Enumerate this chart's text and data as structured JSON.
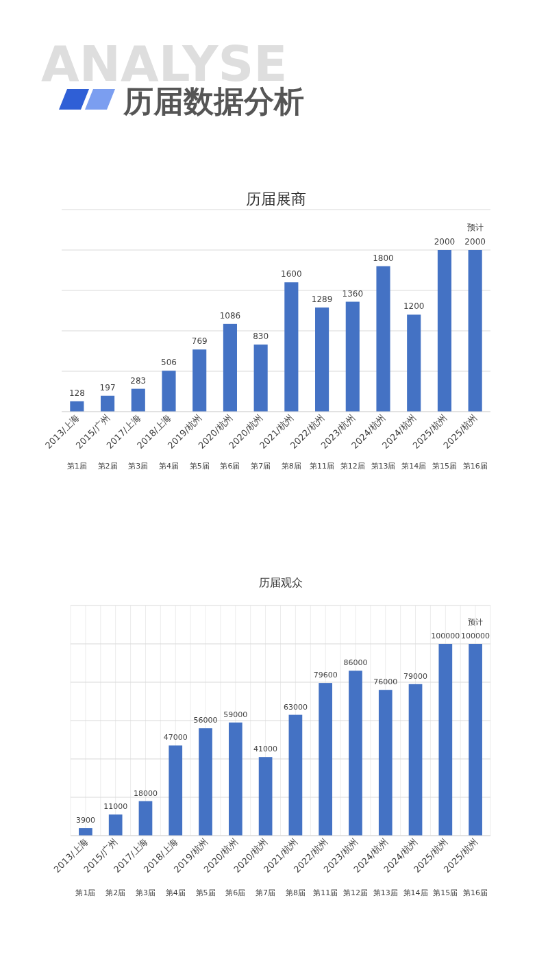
{
  "chart_data": [
    {
      "type": "bar",
      "title": "历届展商",
      "categories": [
        "2013/上海",
        "2015/广州",
        "2017/上海",
        "2018/上海",
        "2019/杭州",
        "2020/杭州",
        "2020/杭州",
        "2021/杭州",
        "2022/杭州",
        "2023/杭州",
        "2024/杭州",
        "2024/杭州",
        "2025/杭州",
        "2025/杭州"
      ],
      "values": [
        128,
        197,
        283,
        506,
        769,
        1086,
        830,
        1600,
        1289,
        1360,
        1800,
        1200,
        2000,
        2000
      ],
      "color": "#4472c4",
      "ylim": [
        0,
        2500
      ],
      "yticks": [
        {
          "value": 0,
          "label": null
        },
        {
          "value": 500,
          "label": null
        },
        {
          "value": 1000,
          "label": null
        },
        {
          "value": 1500,
          "label": null
        },
        {
          "value": 2000,
          "label": null
        },
        {
          "value": 2500,
          "label": null
        }
      ],
      "grid": "y",
      "tick_labels": "x",
      "data_labels": true,
      "annotations": [
        "历届数据分析",
        "ANALYSE",
        "预计",
        "第1届",
        "第2届",
        "第3届",
        "第4届",
        "第5届",
        "第6届",
        "第7届",
        "第8届",
        "第11届",
        "第12届",
        "第13届",
        "第14届",
        "第15届",
        "第16届"
      ]
    },
    {
      "type": "bar",
      "title": "历届观众",
      "categories": [
        "2013/上海",
        "2015/广州",
        "2017/上海",
        "2018/上海",
        "2019/杭州",
        "2020/杭州",
        "2020/杭州",
        "2021/杭州",
        "2022/杭州",
        "2023/杭州",
        "2024/杭州",
        "2024/杭州",
        "2025/杭州",
        "2025/杭州"
      ],
      "values": [
        3900,
        11000,
        18000,
        47000,
        56000,
        59000,
        41000,
        63000,
        79600,
        86000,
        76000,
        79000,
        100000,
        100000
      ],
      "color": "#4472c4",
      "ylim": [
        0,
        120000
      ],
      "yticks": [
        {
          "value": 0,
          "label": null
        },
        {
          "value": 20000,
          "label": null
        },
        {
          "value": 40000,
          "label": null
        },
        {
          "value": 60000,
          "label": null
        },
        {
          "value": 80000,
          "label": null
        },
        {
          "value": 100000,
          "label": null
        },
        {
          "value": 120000,
          "label": null
        }
      ],
      "grid": true,
      "tick_labels": "x",
      "data_labels": true,
      "annotations": [
        "预计",
        "第1届",
        "第2届",
        "第3届",
        "第4届",
        "第5届",
        "第6届",
        "第7届",
        "第8届",
        "第11届",
        "第12届",
        "第13届",
        "第14届",
        "第15届",
        "第16届"
      ]
    }
  ]
}
